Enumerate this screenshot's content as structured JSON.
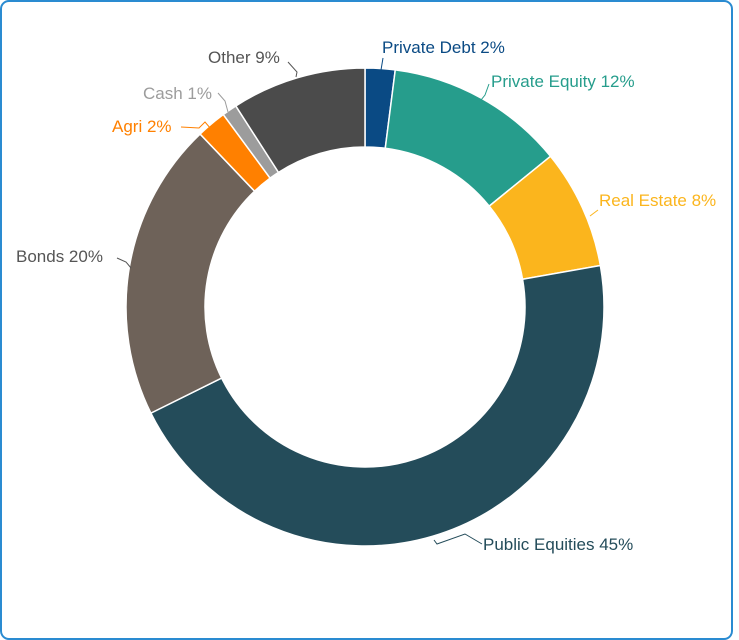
{
  "chart_data": {
    "type": "pie",
    "donut": true,
    "title": "",
    "legend": "none",
    "slices": [
      {
        "label": "Private Debt",
        "value": 2,
        "display": "Private Debt 2%",
        "color": "#0a4a84"
      },
      {
        "label": "Private Equity",
        "value": 12,
        "display": "Private Equity 12%",
        "color": "#269d8c"
      },
      {
        "label": "Real Estate",
        "value": 8,
        "display": "Real Estate 8%",
        "color": "#fbb51d"
      },
      {
        "label": "Public Equities",
        "value": 45,
        "display": "Public Equities 45%",
        "color": "#244c5a"
      },
      {
        "label": "Bonds",
        "value": 20,
        "display": "Bonds 20%",
        "color": "#6e6259"
      },
      {
        "label": "Agri",
        "value": 2,
        "display": "Agri 2%",
        "color": "#ff8000"
      },
      {
        "label": "Cash",
        "value": 1,
        "display": "Cash 1%",
        "color": "#9c9c9c"
      },
      {
        "label": "Other",
        "value": 9,
        "display": "Other 9%",
        "color": "#4b4b4b"
      }
    ]
  },
  "colors": {
    "card_border": "#2a8bd1",
    "label_dark": "#555555"
  }
}
